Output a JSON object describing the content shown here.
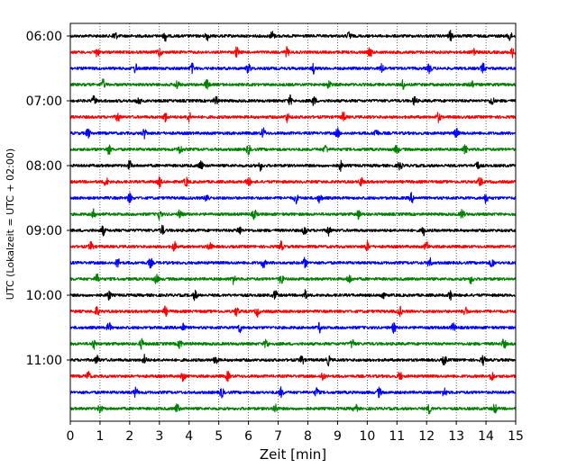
{
  "chart_data": {
    "type": "line",
    "title": "",
    "xlabel": "Zeit  [min]",
    "ylabel": "UTC (Lokalzeit = UTC + 02:00)",
    "xlim": [
      0,
      15
    ],
    "x_ticks": [
      0,
      1,
      2,
      3,
      4,
      5,
      6,
      7,
      8,
      9,
      10,
      11,
      12,
      13,
      14,
      15
    ],
    "grid": "vertical dotted lines at each minute",
    "trace_interval_min": 15,
    "first_trace": "06:00",
    "trace_count": 24,
    "y_tick_labels": [
      "06:00",
      "07:00",
      "08:00",
      "09:00",
      "10:00",
      "11:00"
    ],
    "trace_colors": [
      "#000000",
      "#ff0000",
      "#0000ff",
      "#008000"
    ],
    "burst_minutes": [
      [
        1.5,
        3.2,
        4.6,
        6.8,
        9.4,
        12.8,
        14.8
      ],
      [
        0.9,
        3.0,
        5.6,
        7.3,
        10.1,
        13.6,
        14.9
      ],
      [
        2.2,
        4.1,
        6.0,
        8.2,
        10.5,
        12.1,
        13.9
      ],
      [
        1.1,
        3.6,
        4.6,
        8.7,
        11.2,
        13.5
      ],
      [
        0.8,
        2.3,
        4.9,
        7.4,
        8.2,
        11.6,
        14.2
      ],
      [
        1.6,
        3.2,
        4.0,
        7.3,
        9.2,
        12.4
      ],
      [
        0.6,
        2.5,
        6.5,
        9.0,
        10.3,
        13.0
      ],
      [
        1.3,
        3.7,
        6.0,
        8.6,
        11.0,
        13.3
      ],
      [
        2.0,
        4.4,
        6.4,
        9.1,
        11.1,
        13.7
      ],
      [
        1.2,
        3.0,
        3.9,
        6.0,
        9.8,
        13.8
      ],
      [
        2.0,
        4.6,
        7.6,
        8.4,
        11.5,
        14.0
      ],
      [
        0.8,
        3.0,
        3.7,
        6.2,
        9.7,
        13.2
      ],
      [
        1.1,
        3.1,
        5.7,
        7.9,
        8.7,
        11.9
      ],
      [
        0.7,
        3.5,
        4.7,
        7.1,
        10.0,
        12.0
      ],
      [
        1.6,
        2.7,
        6.5,
        7.9,
        12.1,
        14.2
      ],
      [
        0.9,
        2.9,
        5.5,
        7.1,
        9.4,
        13.5
      ],
      [
        1.3,
        4.2,
        6.9,
        7.9,
        10.5,
        12.8
      ],
      [
        0.9,
        3.2,
        5.6,
        6.3,
        11.1,
        13.3
      ],
      [
        1.3,
        3.8,
        5.7,
        8.4,
        10.9,
        12.9
      ],
      [
        0.8,
        2.4,
        3.7,
        6.6,
        9.5,
        14.6
      ],
      [
        0.9,
        2.5,
        4.9,
        7.8,
        8.7,
        12.6,
        13.9
      ],
      [
        0.6,
        3.8,
        5.3,
        8.5,
        11.1,
        14.2
      ],
      [
        2.2,
        5.1,
        7.1,
        8.3,
        10.4,
        12.6
      ],
      [
        1.0,
        3.6,
        6.9,
        9.6,
        12.1,
        14.3
      ]
    ]
  }
}
